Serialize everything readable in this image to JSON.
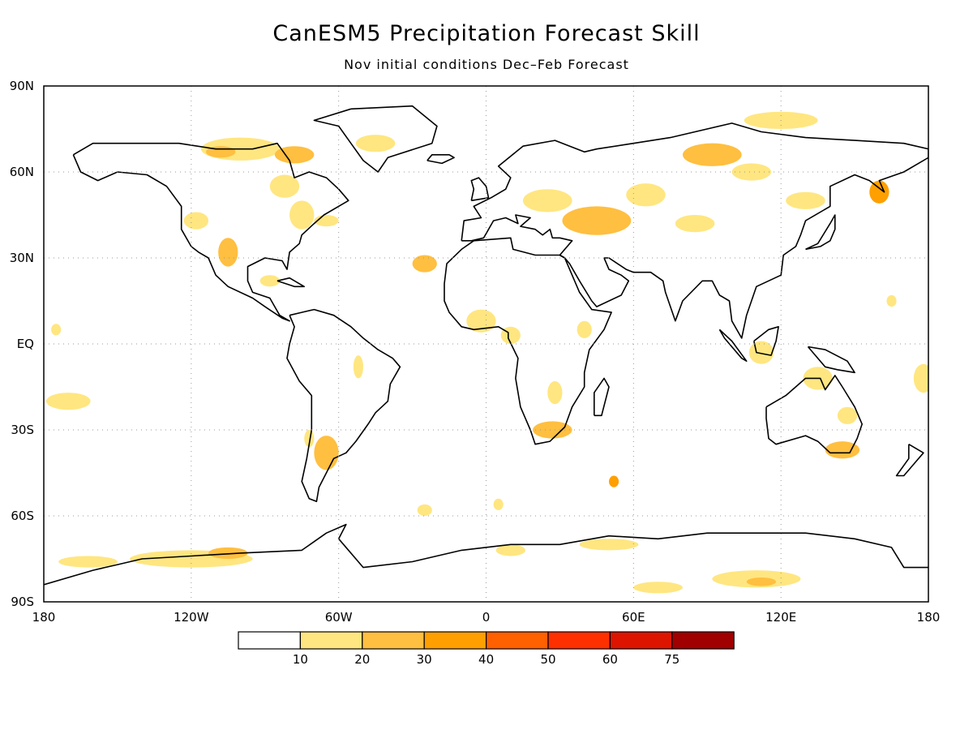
{
  "title": "CanESM5 Precipitation Forecast Skill",
  "subtitle": "Nov initial conditions   Dec–Feb Forecast",
  "map": {
    "projection": "equirectangular",
    "lon_range": [
      -180,
      180
    ],
    "lat_range": [
      -90,
      90
    ],
    "grid": "dotted",
    "lat_ticks": [
      {
        "value": 90,
        "label": "90N"
      },
      {
        "value": 60,
        "label": "60N"
      },
      {
        "value": 30,
        "label": "30N"
      },
      {
        "value": 0,
        "label": "EQ"
      },
      {
        "value": -30,
        "label": "30S"
      },
      {
        "value": -60,
        "label": "60S"
      },
      {
        "value": -90,
        "label": "90S"
      }
    ],
    "lon_ticks": [
      {
        "value": -180,
        "label": "180"
      },
      {
        "value": -120,
        "label": "120W"
      },
      {
        "value": -60,
        "label": "60W"
      },
      {
        "value": 0,
        "label": "0"
      },
      {
        "value": 60,
        "label": "60E"
      },
      {
        "value": 120,
        "label": "120E"
      },
      {
        "value": 180,
        "label": "180"
      }
    ]
  },
  "colorbar": {
    "bins": [
      {
        "color": "#ffffff"
      },
      {
        "color": "#ffe680"
      },
      {
        "color": "#ffbf40"
      },
      {
        "color": "#ff9f00"
      },
      {
        "color": "#ff6000"
      },
      {
        "color": "#ff3000"
      },
      {
        "color": "#dd1500"
      },
      {
        "color": "#a00000"
      }
    ],
    "labels": [
      "10",
      "20",
      "30",
      "40",
      "50",
      "60",
      "75"
    ]
  },
  "skill_regions": [
    {
      "lon": -100,
      "lat": 68,
      "rlon": 16,
      "rlat": 4,
      "level": 1
    },
    {
      "lon": -78,
      "lat": 66,
      "rlon": 8,
      "rlat": 3,
      "level": 2
    },
    {
      "lon": -108,
      "lat": 67,
      "rlon": 6,
      "rlat": 2,
      "level": 2
    },
    {
      "lon": -82,
      "lat": 55,
      "rlon": 6,
      "rlat": 4,
      "level": 1
    },
    {
      "lon": -75,
      "lat": 45,
      "rlon": 5,
      "rlat": 5,
      "level": 1
    },
    {
      "lon": -65,
      "lat": 43,
      "rlon": 5,
      "rlat": 2,
      "level": 1
    },
    {
      "lon": -118,
      "lat": 43,
      "rlon": 5,
      "rlat": 3,
      "level": 1
    },
    {
      "lon": -105,
      "lat": 32,
      "rlon": 4,
      "rlat": 5,
      "level": 2
    },
    {
      "lon": -45,
      "lat": 70,
      "rlon": 8,
      "rlat": 3,
      "level": 1
    },
    {
      "lon": -25,
      "lat": 28,
      "rlon": 5,
      "rlat": 3,
      "level": 2
    },
    {
      "lon": -88,
      "lat": 22,
      "rlon": 4,
      "rlat": 2,
      "level": 1
    },
    {
      "lon": -65,
      "lat": -38,
      "rlon": 5,
      "rlat": 6,
      "level": 2
    },
    {
      "lon": -72,
      "lat": -33,
      "rlon": 2,
      "rlat": 3,
      "level": 1
    },
    {
      "lon": -170,
      "lat": -20,
      "rlon": 9,
      "rlat": 3,
      "level": 1
    },
    {
      "lon": -175,
      "lat": 5,
      "rlon": 2,
      "rlat": 2,
      "level": 1
    },
    {
      "lon": -52,
      "lat": -8,
      "rlon": 2,
      "rlat": 4,
      "level": 1
    },
    {
      "lon": -2,
      "lat": 8,
      "rlon": 6,
      "rlat": 4,
      "level": 1
    },
    {
      "lon": 10,
      "lat": 3,
      "rlon": 4,
      "rlat": 3,
      "level": 1
    },
    {
      "lon": 27,
      "lat": -30,
      "rlon": 8,
      "rlat": 3,
      "level": 2
    },
    {
      "lon": 28,
      "lat": -17,
      "rlon": 3,
      "rlat": 4,
      "level": 1
    },
    {
      "lon": 40,
      "lat": 5,
      "rlon": 3,
      "rlat": 3,
      "level": 1
    },
    {
      "lon": 52,
      "lat": -48,
      "rlon": 2,
      "rlat": 2,
      "level": 3
    },
    {
      "lon": 45,
      "lat": 43,
      "rlon": 14,
      "rlat": 5,
      "level": 2
    },
    {
      "lon": 25,
      "lat": 50,
      "rlon": 10,
      "rlat": 4,
      "level": 1
    },
    {
      "lon": 65,
      "lat": 52,
      "rlon": 8,
      "rlat": 4,
      "level": 1
    },
    {
      "lon": 85,
      "lat": 42,
      "rlon": 8,
      "rlat": 3,
      "level": 1
    },
    {
      "lon": 92,
      "lat": 66,
      "rlon": 12,
      "rlat": 4,
      "level": 2
    },
    {
      "lon": 108,
      "lat": 60,
      "rlon": 8,
      "rlat": 3,
      "level": 1
    },
    {
      "lon": 160,
      "lat": 53,
      "rlon": 4,
      "rlat": 4,
      "level": 3
    },
    {
      "lon": 130,
      "lat": 50,
      "rlon": 8,
      "rlat": 3,
      "level": 1
    },
    {
      "lon": 120,
      "lat": 78,
      "rlon": 15,
      "rlat": 3,
      "level": 1
    },
    {
      "lon": 112,
      "lat": -3,
      "rlon": 5,
      "rlat": 4,
      "level": 1
    },
    {
      "lon": 135,
      "lat": -12,
      "rlon": 6,
      "rlat": 4,
      "level": 1
    },
    {
      "lon": 145,
      "lat": -37,
      "rlon": 7,
      "rlat": 3,
      "level": 2
    },
    {
      "lon": 147,
      "lat": -25,
      "rlon": 4,
      "rlat": 3,
      "level": 1
    },
    {
      "lon": 178,
      "lat": -12,
      "rlon": 4,
      "rlat": 5,
      "level": 1
    },
    {
      "lon": 165,
      "lat": 15,
      "rlon": 2,
      "rlat": 2,
      "level": 1
    },
    {
      "lon": -120,
      "lat": -75,
      "rlon": 25,
      "rlat": 3,
      "level": 1
    },
    {
      "lon": -105,
      "lat": -73,
      "rlon": 8,
      "rlat": 2,
      "level": 2
    },
    {
      "lon": -162,
      "lat": -76,
      "rlon": 12,
      "rlat": 2,
      "level": 1
    },
    {
      "lon": 110,
      "lat": -82,
      "rlon": 18,
      "rlat": 3,
      "level": 1
    },
    {
      "lon": 112,
      "lat": -83,
      "rlon": 6,
      "rlat": 1.5,
      "level": 2
    },
    {
      "lon": 70,
      "lat": -85,
      "rlon": 10,
      "rlat": 2,
      "level": 1
    },
    {
      "lon": 50,
      "lat": -70,
      "rlon": 12,
      "rlat": 2,
      "level": 1
    },
    {
      "lon": 10,
      "lat": -72,
      "rlon": 6,
      "rlat": 2,
      "level": 1
    },
    {
      "lon": 5,
      "lat": -56,
      "rlon": 2,
      "rlat": 2,
      "level": 1
    },
    {
      "lon": -25,
      "lat": -58,
      "rlon": 3,
      "rlat": 2,
      "level": 1
    }
  ]
}
